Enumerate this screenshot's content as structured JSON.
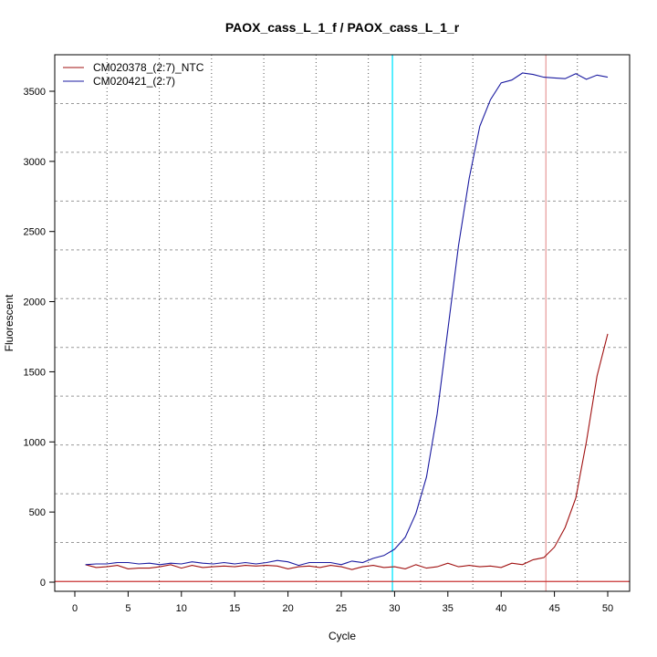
{
  "chart_data": {
    "type": "line",
    "title": "PAOX_cass_L_1_f / PAOX_cass_L_1_r",
    "xlabel": "Cycle",
    "ylabel": "Fluorescent",
    "xlim": [
      -2,
      52
    ],
    "ylim": [
      -60,
      3750
    ],
    "xticks": [
      0,
      5,
      10,
      15,
      20,
      25,
      30,
      35,
      40,
      45,
      50
    ],
    "yticks": [
      0,
      500,
      1000,
      1500,
      2000,
      2500,
      3000,
      3500
    ],
    "grid": true,
    "legend_position": "top-left",
    "x": [
      1,
      2,
      3,
      4,
      5,
      6,
      7,
      8,
      9,
      10,
      11,
      12,
      13,
      14,
      15,
      16,
      17,
      18,
      19,
      20,
      21,
      22,
      23,
      24,
      25,
      26,
      27,
      28,
      29,
      30,
      31,
      32,
      33,
      34,
      35,
      36,
      37,
      38,
      39,
      40,
      41,
      42,
      43,
      44,
      45,
      46,
      47,
      48,
      49,
      50
    ],
    "series": [
      {
        "name": "CM020378_(2:7)_NTC",
        "color": "#a01010",
        "values": [
          125,
          105,
          110,
          120,
          95,
          100,
          100,
          110,
          125,
          100,
          120,
          105,
          110,
          115,
          110,
          120,
          115,
          120,
          115,
          95,
          110,
          115,
          105,
          120,
          110,
          90,
          110,
          120,
          105,
          110,
          95,
          125,
          100,
          110,
          135,
          110,
          120,
          110,
          115,
          105,
          135,
          125,
          160,
          175,
          250,
          390,
          600,
          1000,
          1470,
          1770
        ]
      },
      {
        "name": "CM020421_(2:7)",
        "color": "#1a1aa0",
        "values": [
          125,
          130,
          130,
          140,
          140,
          130,
          135,
          125,
          135,
          130,
          145,
          135,
          130,
          140,
          130,
          140,
          130,
          140,
          155,
          145,
          120,
          140,
          140,
          140,
          125,
          150,
          140,
          170,
          190,
          235,
          320,
          490,
          750,
          1200,
          1800,
          2400,
          2880,
          3250,
          3440,
          3560,
          3580,
          3630,
          3620,
          3600,
          3595,
          3590,
          3625,
          3585,
          3615,
          3600
        ]
      }
    ],
    "threshold": {
      "value": 5,
      "color": "#c83232"
    },
    "vertical_markers": [
      {
        "cycle": 29.8,
        "color": "#00e5ff"
      },
      {
        "cycle": 44.2,
        "color": "#e8a0a0"
      }
    ]
  }
}
